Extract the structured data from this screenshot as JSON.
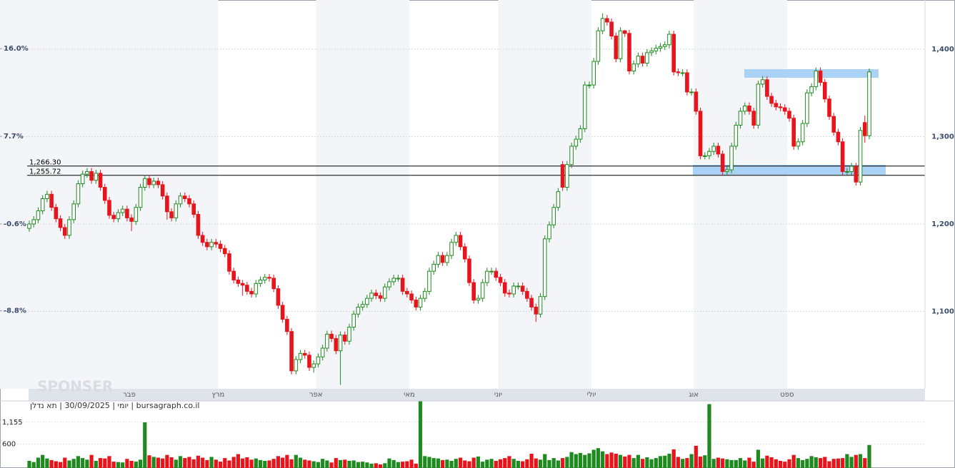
{
  "chart_data": {
    "type": "candlestick",
    "open": [
      1195,
      1200,
      1205,
      1215,
      1229,
      1234,
      1219,
      1206,
      1196,
      1187,
      1205,
      1223,
      1246,
      1257,
      1260,
      1250,
      1258,
      1242,
      1227,
      1210,
      1206,
      1213,
      1217,
      1207,
      1203,
      1219,
      1242,
      1252,
      1245,
      1249,
      1245,
      1232,
      1214,
      1207,
      1223,
      1232,
      1229,
      1223,
      1211,
      1187,
      1179,
      1174,
      1179,
      1177,
      1172,
      1166,
      1146,
      1136,
      1132,
      1130,
      1123,
      1120,
      1132,
      1136,
      1139,
      1138,
      1126,
      1107,
      1091,
      1077,
      1032,
      1045,
      1052,
      1050,
      1036,
      1040,
      1048,
      1058,
      1074,
      1069,
      1055,
      1073,
      1066,
      1082,
      1097,
      1105,
      1108,
      1115,
      1121,
      1118,
      1115,
      1128,
      1134,
      1138,
      1138,
      1123,
      1120,
      1113,
      1105,
      1115,
      1123,
      1146,
      1154,
      1164,
      1156,
      1164,
      1179,
      1187,
      1174,
      1160,
      1133,
      1113,
      1115,
      1133,
      1146,
      1146,
      1139,
      1133,
      1121,
      1120,
      1129,
      1129,
      1123,
      1115,
      1105,
      1097,
      1117,
      1183,
      1199,
      1219,
      1268,
      1242,
      1268,
      1289,
      1297,
      1309,
      1359,
      1359,
      1386,
      1421,
      1435,
      1431,
      1415,
      1389,
      1421,
      1418,
      1375,
      1383,
      1392,
      1384,
      1396,
      1398,
      1401,
      1403,
      1405,
      1417,
      1374,
      1373,
      1373,
      1351,
      1351,
      1329,
      1278,
      1278,
      1283,
      1289,
      1280,
      1260,
      1262,
      1289,
      1313,
      1329,
      1335,
      1329,
      1313,
      1360,
      1365,
      1346,
      1338,
      1334,
      1333,
      1329,
      1321,
      1289,
      1294,
      1315,
      1350,
      1357,
      1375,
      1362,
      1343,
      1323,
      1305,
      1294,
      1260,
      1260,
      1266,
      1248,
      1316,
      1301
    ],
    "high": [
      1204,
      1209,
      1219,
      1233,
      1238,
      1238,
      1223,
      1210,
      1200,
      1209,
      1227,
      1250,
      1261,
      1264,
      1264,
      1262,
      1262,
      1246,
      1231,
      1214,
      1217,
      1221,
      1221,
      1211,
      1223,
      1246,
      1256,
      1256,
      1253,
      1253,
      1249,
      1236,
      1218,
      1227,
      1236,
      1236,
      1233,
      1227,
      1215,
      1191,
      1183,
      1183,
      1183,
      1181,
      1176,
      1170,
      1150,
      1140,
      1136,
      1134,
      1127,
      1136,
      1140,
      1143,
      1143,
      1142,
      1130,
      1111,
      1095,
      1081,
      1049,
      1056,
      1056,
      1054,
      1044,
      1052,
      1062,
      1078,
      1078,
      1073,
      1077,
      1077,
      1086,
      1101,
      1109,
      1112,
      1119,
      1125,
      1125,
      1122,
      1132,
      1138,
      1142,
      1142,
      1142,
      1127,
      1124,
      1117,
      1119,
      1127,
      1150,
      1158,
      1168,
      1168,
      1168,
      1183,
      1191,
      1191,
      1178,
      1164,
      1137,
      1119,
      1137,
      1150,
      1150,
      1150,
      1143,
      1137,
      1125,
      1133,
      1133,
      1133,
      1127,
      1119,
      1109,
      1121,
      1187,
      1203,
      1223,
      1241,
      1272,
      1272,
      1293,
      1301,
      1313,
      1363,
      1363,
      1390,
      1425,
      1441,
      1439,
      1435,
      1419,
      1425,
      1422,
      1422,
      1387,
      1396,
      1396,
      1400,
      1402,
      1405,
      1407,
      1409,
      1421,
      1421,
      1378,
      1377,
      1377,
      1355,
      1355,
      1333,
      1282,
      1287,
      1293,
      1293,
      1284,
      1266,
      1293,
      1317,
      1333,
      1339,
      1339,
      1333,
      1364,
      1369,
      1369,
      1350,
      1342,
      1338,
      1337,
      1333,
      1325,
      1298,
      1319,
      1354,
      1361,
      1379,
      1379,
      1366,
      1347,
      1327,
      1309,
      1298,
      1264,
      1270,
      1270,
      1311,
      1324,
      1378
    ],
    "low": [
      1191,
      1196,
      1201,
      1211,
      1225,
      1215,
      1202,
      1192,
      1183,
      1183,
      1201,
      1219,
      1242,
      1253,
      1246,
      1246,
      1238,
      1223,
      1206,
      1202,
      1202,
      1209,
      1203,
      1192,
      1199,
      1215,
      1238,
      1241,
      1241,
      1241,
      1228,
      1205,
      1203,
      1203,
      1219,
      1225,
      1219,
      1207,
      1183,
      1175,
      1170,
      1170,
      1173,
      1168,
      1162,
      1142,
      1132,
      1128,
      1118,
      1119,
      1116,
      1116,
      1128,
      1132,
      1134,
      1122,
      1103,
      1087,
      1073,
      1028,
      1028,
      1041,
      1046,
      1032,
      1030,
      1036,
      1044,
      1054,
      1065,
      1051,
      1016,
      1062,
      1062,
      1078,
      1093,
      1101,
      1104,
      1111,
      1114,
      1111,
      1111,
      1124,
      1130,
      1134,
      1119,
      1116,
      1109,
      1101,
      1101,
      1111,
      1119,
      1142,
      1150,
      1152,
      1152,
      1160,
      1175,
      1170,
      1156,
      1129,
      1109,
      1109,
      1111,
      1129,
      1142,
      1135,
      1129,
      1117,
      1116,
      1116,
      1125,
      1119,
      1111,
      1101,
      1088,
      1093,
      1113,
      1179,
      1195,
      1215,
      1238,
      1238,
      1264,
      1285,
      1293,
      1305,
      1355,
      1355,
      1382,
      1417,
      1427,
      1411,
      1385,
      1385,
      1414,
      1371,
      1371,
      1379,
      1380,
      1380,
      1392,
      1394,
      1397,
      1399,
      1401,
      1370,
      1369,
      1369,
      1347,
      1347,
      1325,
      1274,
      1274,
      1274,
      1279,
      1276,
      1256,
      1256,
      1258,
      1285,
      1309,
      1325,
      1325,
      1309,
      1309,
      1356,
      1342,
      1334,
      1330,
      1329,
      1325,
      1317,
      1285,
      1285,
      1290,
      1311,
      1346,
      1353,
      1358,
      1339,
      1319,
      1301,
      1290,
      1256,
      1256,
      1256,
      1244,
      1244,
      1293,
      1297
    ],
    "close": [
      1200,
      1205,
      1215,
      1229,
      1234,
      1219,
      1206,
      1196,
      1187,
      1205,
      1223,
      1246,
      1257,
      1260,
      1250,
      1258,
      1242,
      1227,
      1210,
      1206,
      1213,
      1217,
      1207,
      1203,
      1219,
      1242,
      1252,
      1245,
      1249,
      1245,
      1232,
      1214,
      1207,
      1223,
      1232,
      1229,
      1223,
      1211,
      1187,
      1179,
      1174,
      1179,
      1177,
      1172,
      1166,
      1146,
      1136,
      1132,
      1130,
      1123,
      1120,
      1132,
      1136,
      1139,
      1138,
      1126,
      1107,
      1091,
      1077,
      1032,
      1045,
      1052,
      1050,
      1036,
      1040,
      1048,
      1058,
      1074,
      1069,
      1055,
      1073,
      1066,
      1082,
      1097,
      1105,
      1108,
      1115,
      1121,
      1118,
      1115,
      1128,
      1134,
      1138,
      1138,
      1123,
      1120,
      1113,
      1105,
      1115,
      1123,
      1146,
      1154,
      1164,
      1156,
      1164,
      1179,
      1187,
      1174,
      1160,
      1133,
      1113,
      1115,
      1133,
      1146,
      1146,
      1139,
      1133,
      1121,
      1120,
      1129,
      1129,
      1123,
      1115,
      1105,
      1097,
      1117,
      1183,
      1199,
      1219,
      1237,
      1242,
      1268,
      1289,
      1297,
      1309,
      1359,
      1359,
      1386,
      1421,
      1435,
      1431,
      1415,
      1389,
      1421,
      1418,
      1375,
      1383,
      1392,
      1384,
      1396,
      1398,
      1401,
      1403,
      1405,
      1417,
      1374,
      1373,
      1373,
      1351,
      1351,
      1329,
      1278,
      1278,
      1283,
      1289,
      1280,
      1260,
      1262,
      1289,
      1313,
      1329,
      1335,
      1329,
      1313,
      1360,
      1365,
      1346,
      1338,
      1334,
      1333,
      1329,
      1321,
      1289,
      1294,
      1315,
      1350,
      1357,
      1375,
      1362,
      1343,
      1323,
      1305,
      1294,
      1260,
      1260,
      1266,
      1248,
      1307,
      1301,
      1374
    ],
    "volume": [
      180,
      150,
      260,
      330,
      240,
      200,
      170,
      150,
      260,
      190,
      230,
      300,
      250,
      210,
      330,
      180,
      250,
      240,
      300,
      160,
      150,
      140,
      230,
      180,
      160,
      210,
      1150,
      320,
      280,
      260,
      240,
      330,
      270,
      210,
      300,
      250,
      280,
      220,
      310,
      260,
      200,
      280,
      210,
      160,
      250,
      190,
      280,
      350,
      240,
      270,
      210,
      240,
      200,
      180,
      190,
      230,
      300,
      260,
      330,
      220,
      330,
      260,
      210,
      190,
      170,
      150,
      230,
      190,
      140,
      250,
      200,
      210,
      180,
      190,
      150,
      160,
      140,
      110,
      120,
      90,
      120,
      240,
      200,
      150,
      160,
      170,
      210,
      110,
      1680,
      300,
      280,
      250,
      240,
      200,
      210,
      180,
      230,
      260,
      190,
      170,
      260,
      290,
      160,
      210,
      230,
      180,
      220,
      250,
      300,
      230,
      180,
      170,
      220,
      360,
      240,
      210,
      350,
      200,
      250,
      190,
      250,
      280,
      400,
      350,
      380,
      330,
      370,
      460,
      500,
      420,
      350,
      390,
      360,
      330,
      290,
      330,
      250,
      330,
      230,
      270,
      220,
      250,
      300,
      310,
      360,
      470,
      280,
      230,
      250,
      350,
      560,
      290,
      320,
      1610,
      230,
      260,
      240,
      220,
      200,
      200,
      250,
      190,
      260,
      160,
      460,
      240,
      310,
      270,
      220,
      180,
      160,
      220,
      330,
      250,
      200,
      230,
      300,
      270,
      250,
      280,
      170,
      230,
      240,
      250,
      350,
      280,
      330,
      350,
      250,
      580
    ],
    "ylim": [
      1011.5,
      1456.2
    ],
    "yticks": [
      {
        "value": 1100,
        "label": "1,100"
      },
      {
        "value": 1200,
        "label": "1,200"
      },
      {
        "value": 1300,
        "label": "1,300"
      },
      {
        "value": 1400,
        "label": "1,400"
      }
    ],
    "y2lim": [
      -16.2,
      20.6
    ],
    "y2ticks": [
      {
        "value": -8.8,
        "label": "-8.8%"
      },
      {
        "value": -0.6,
        "label": "-0.6%"
      },
      {
        "value": 7.7,
        "label": "7.7%"
      },
      {
        "value": 16.0,
        "label": "16.0%"
      }
    ],
    "volume_ylim": [
      0,
      1690
    ],
    "volume_ticks": [
      600,
      {
        "value": 1155,
        "label": "1,155"
      }
    ],
    "xticks": [
      {
        "value": 23,
        "label": "פבר"
      },
      {
        "value": 43,
        "label": "מרץ"
      },
      {
        "value": 65,
        "label": "אפר"
      },
      {
        "value": 86,
        "label": "מאי"
      },
      {
        "value": 106,
        "label": "יוני"
      },
      {
        "value": 127,
        "label": "יולי"
      },
      {
        "value": 150,
        "label": "אוג"
      },
      {
        "value": 171,
        "label": "ספט"
      }
    ],
    "levels": [
      {
        "value": 1266.3,
        "label": "1,266.30"
      },
      {
        "value": 1255.72,
        "label": "1,255.72"
      }
    ],
    "colors": {
      "up": "#1f8a1f",
      "down": "#e8141c",
      "band": "#f3f5f8"
    },
    "grid": true,
    "footer": "יומי | 30/09/2025 | תא נדלן | bursagraph.co.il",
    "watermark": "SPONSER"
  }
}
